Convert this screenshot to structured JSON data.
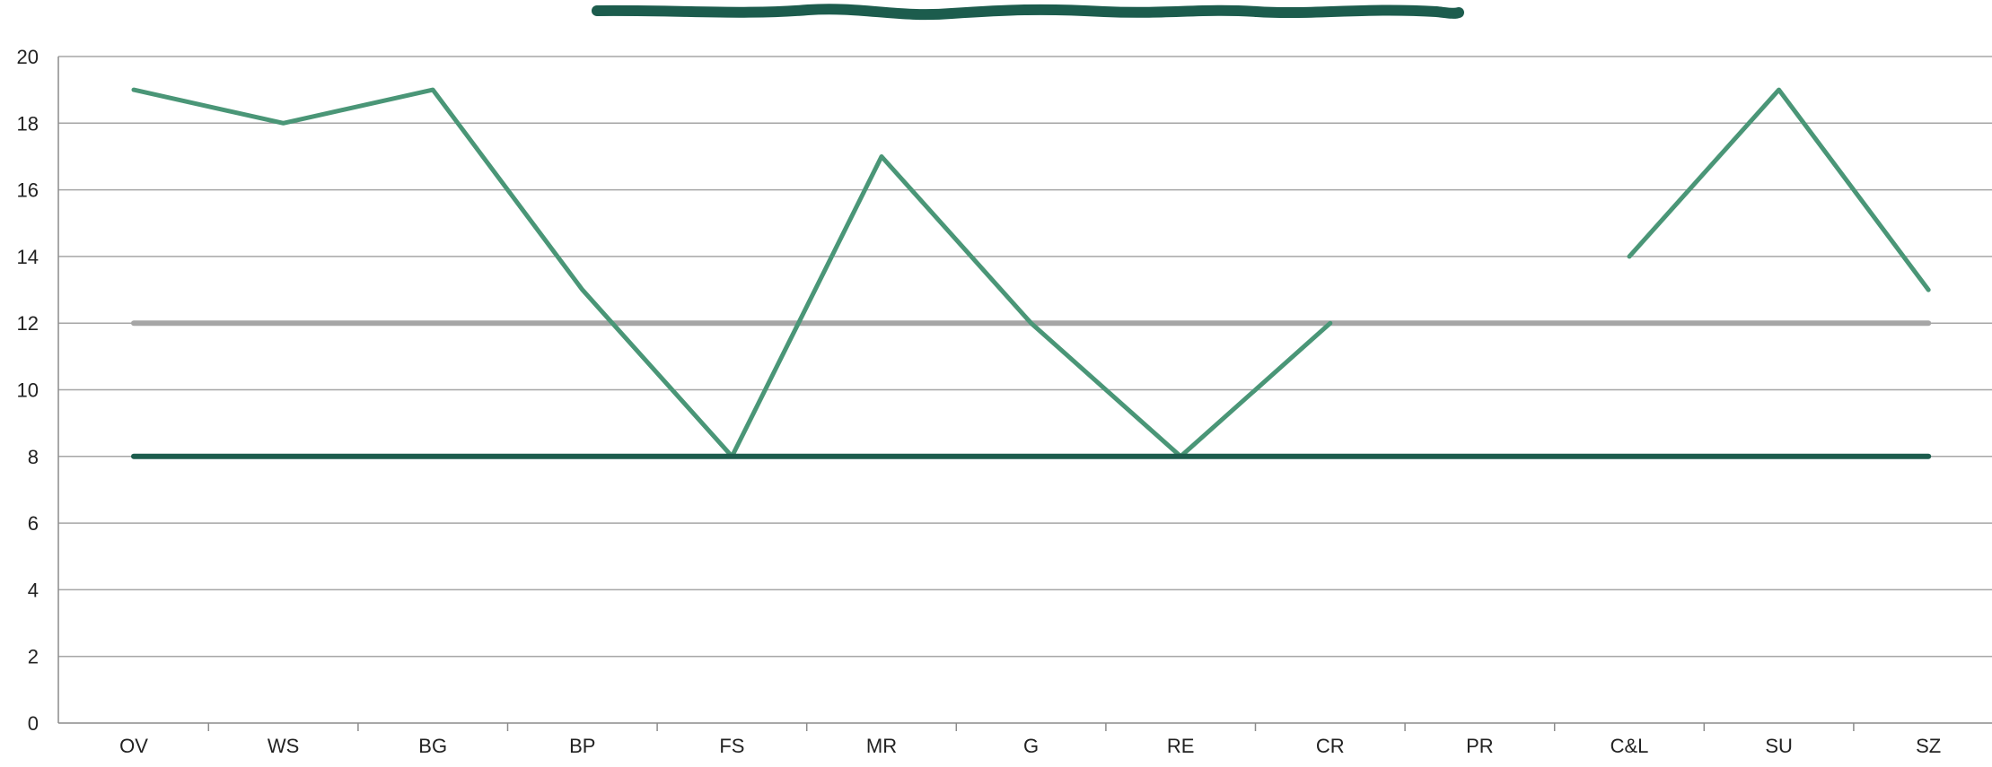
{
  "chart_data": {
    "type": "line",
    "title": "",
    "xlabel": "",
    "ylabel": "",
    "categories": [
      "OV",
      "WS",
      "BG",
      "BP",
      "FS",
      "MR",
      "G",
      "RE",
      "CR",
      "PR",
      "C&L",
      "SU",
      "SZ"
    ],
    "ylim": [
      0,
      20
    ],
    "yticks": [
      0,
      2,
      4,
      6,
      8,
      10,
      12,
      14,
      16,
      18,
      20
    ],
    "grid": true,
    "legend": "none",
    "series": [
      {
        "values": [
          19,
          18,
          19,
          13,
          8,
          17,
          12,
          8,
          12,
          null,
          14,
          19,
          13
        ],
        "color": "#4a9677"
      },
      {
        "values": [
          12,
          12,
          12,
          12,
          12,
          12,
          12,
          12,
          12,
          12,
          12,
          12,
          12
        ],
        "color": "#a6a6a6"
      },
      {
        "values": [
          8,
          8,
          8,
          8,
          8,
          8,
          8,
          8,
          8,
          8,
          8,
          8,
          8
        ],
        "color": "#1c5c4d"
      }
    ],
    "colors": {
      "grid": "#a6a6a6",
      "axis": "#8c8c8c",
      "redaction": "#1c5c4d"
    }
  }
}
